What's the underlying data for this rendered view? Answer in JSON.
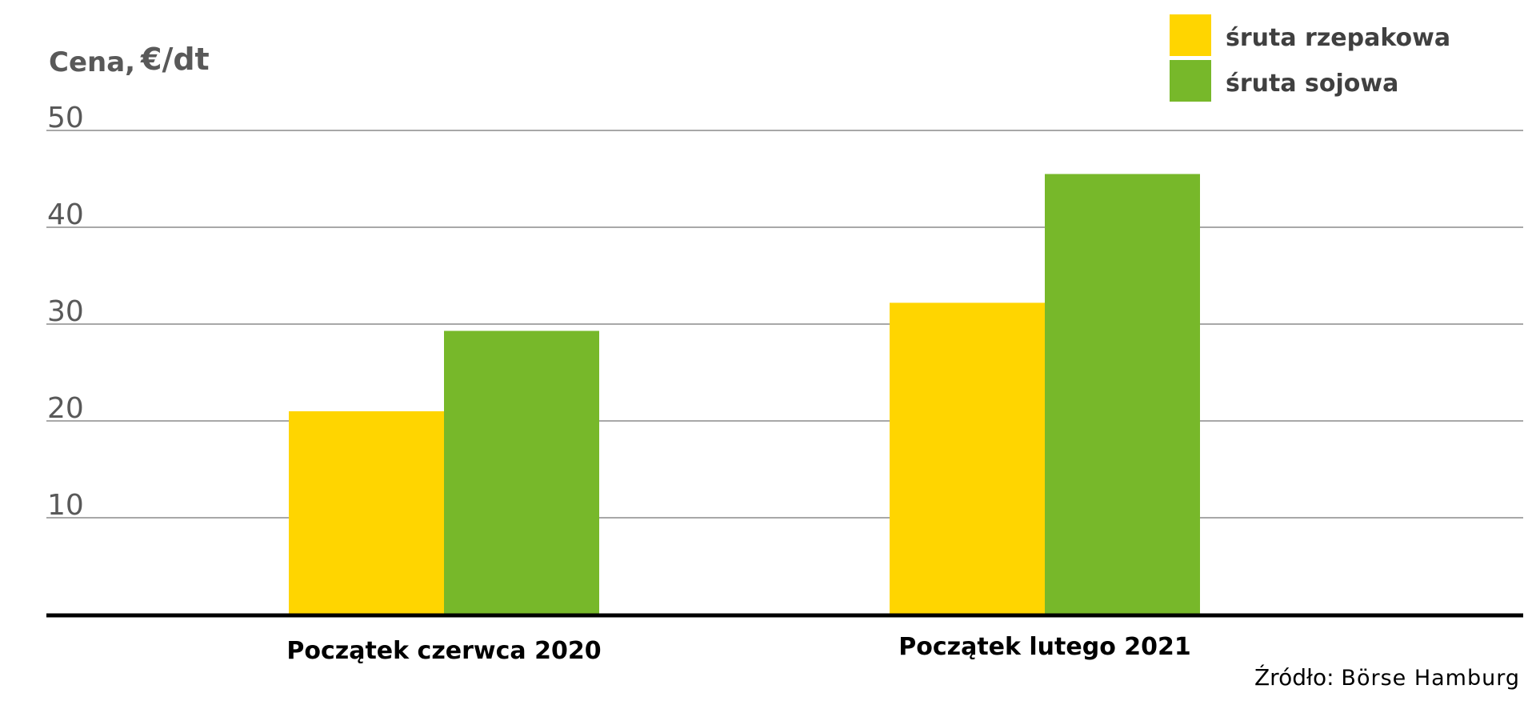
{
  "chart_data": {
    "type": "bar",
    "ylabel": "Cena,",
    "yunit": "€/dt",
    "ylim": [
      0,
      50
    ],
    "yticks": [
      10,
      20,
      30,
      40,
      50
    ],
    "grid": true,
    "legend_position": "top-right",
    "categories": [
      "Początek czerwca 2020",
      "Początek lutego 2021"
    ],
    "series": [
      {
        "name": "śruta rzepakowa",
        "color": "#FFD500",
        "values": [
          21,
          32.2
        ]
      },
      {
        "name": "śruta sojowa",
        "color": "#77B82A",
        "values": [
          29.3,
          45.5
        ]
      }
    ],
    "source_label": "Źródło:",
    "source_value": "Börse Hamburg"
  }
}
